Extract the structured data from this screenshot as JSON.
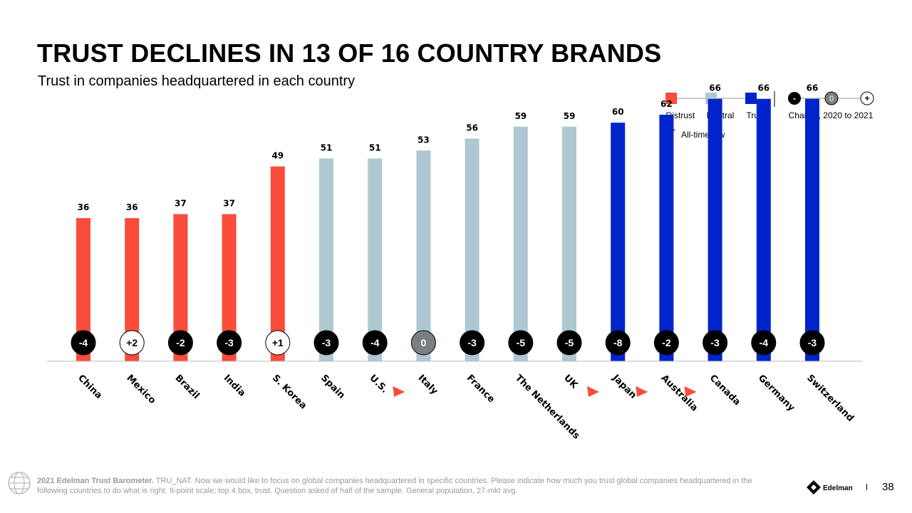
{
  "title": "TRUST DECLINES IN 13 OF 16 COUNTRY BRANDS",
  "subtitle": "Trust in companies headquartered in each country",
  "legend": {
    "distrust": "Distrust",
    "neutral": "Neutral",
    "trust": "Trust",
    "change_label": "Change, 2020 to 2021",
    "change_minus": "-",
    "change_zero": "0",
    "change_plus": "+",
    "all_time_low": "All-time low"
  },
  "colors": {
    "distrust": "#f94c3a",
    "neutral": "#aec8d2",
    "trust": "#0024cc",
    "negative_change": "#000000",
    "zero_change": "#7a7f82",
    "positive_change": "#ffffff",
    "all_time_low_marker": "#f94c3a"
  },
  "chart_data": {
    "type": "bar",
    "categories": [
      "China",
      "Mexico",
      "Brazil",
      "India",
      "S. Korea",
      "Spain",
      "U.S.",
      "Italy",
      "France",
      "The Netherlands",
      "UK",
      "Japan",
      "Australia",
      "Canada",
      "Germany",
      "Switzerland"
    ],
    "values": [
      36,
      36,
      37,
      37,
      49,
      51,
      51,
      53,
      56,
      59,
      59,
      60,
      62,
      66,
      66,
      66
    ],
    "trust_level": [
      "distrust",
      "distrust",
      "distrust",
      "distrust",
      "distrust",
      "neutral",
      "neutral",
      "neutral",
      "neutral",
      "neutral",
      "neutral",
      "trust",
      "trust",
      "trust",
      "trust",
      "trust"
    ],
    "change": [
      "-4",
      "+2",
      "-2",
      "-3",
      "+1",
      "-3",
      "-4",
      "0",
      "-3",
      "-5",
      "-5",
      "-8",
      "-2",
      "-3",
      "-4",
      "-3"
    ],
    "all_time_low": [
      false,
      false,
      false,
      false,
      false,
      false,
      true,
      false,
      false,
      false,
      true,
      true,
      true,
      false,
      false,
      false
    ],
    "ylim": [
      0,
      100
    ]
  },
  "footer": {
    "source_bold": "2021 Edelman Trust Barometer.",
    "source_text": " TRU_NAT. Now we would like to focus on global companies headquartered in specific countries. Please indicate how much you trust global companies headquartered in the following countries to do what is right. 9-point scale; top 4 box, trust. Question asked of half of the sample. General population, 27-mkt avg."
  },
  "brand": "Edelman",
  "page_number": "38"
}
